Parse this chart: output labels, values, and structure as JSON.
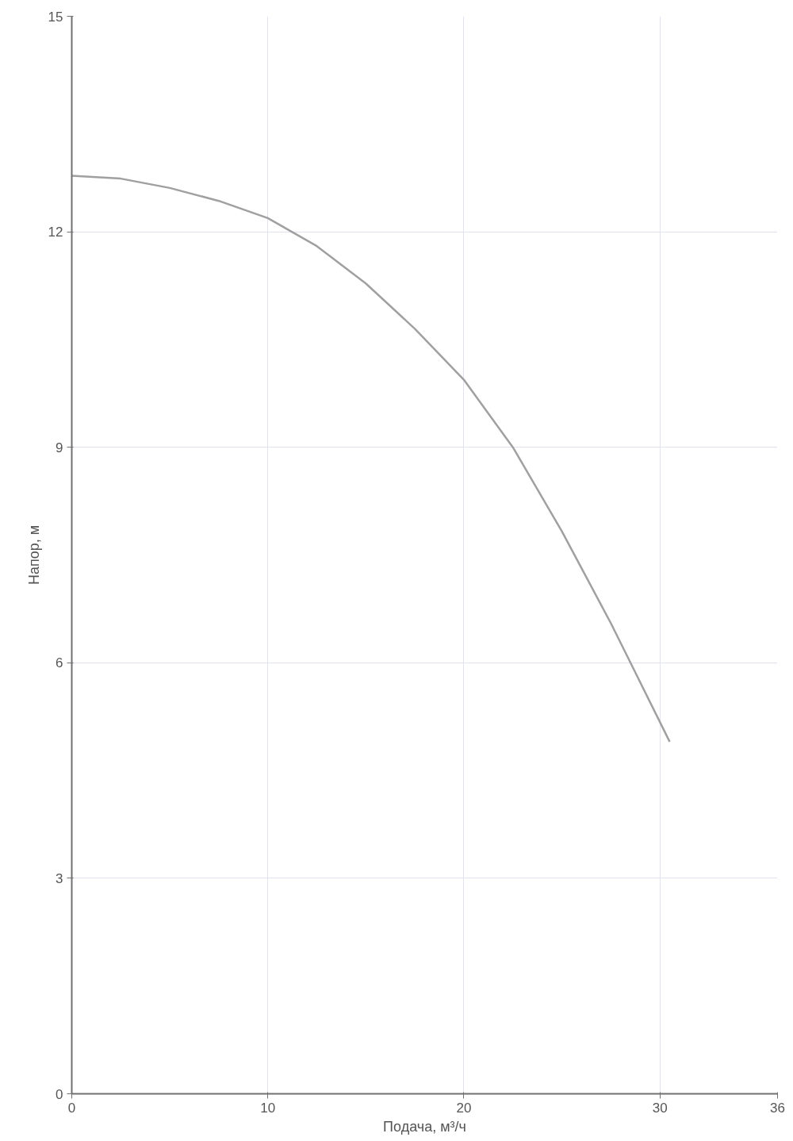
{
  "chart_data": {
    "type": "line",
    "xlabel": "Подача, м³/ч",
    "ylabel": "Напор, м",
    "xlim": [
      0,
      36
    ],
    "xticks": [
      0,
      10,
      20,
      30,
      36
    ],
    "ylim": [
      0,
      15
    ],
    "yticks": [
      0,
      3,
      6,
      9,
      12,
      15
    ],
    "grid": true,
    "marker": "none",
    "line_style": "solid",
    "series": [
      {
        "color": "#a0a0a0",
        "x": [
          0,
          2.5,
          5,
          7.5,
          10,
          12.5,
          15,
          17.5,
          20,
          22.5,
          25,
          27.5,
          28.5,
          30.5
        ],
        "values": [
          12.78,
          12.74,
          12.61,
          12.43,
          12.19,
          11.8,
          11.28,
          10.65,
          9.94,
          9.0,
          7.83,
          6.55,
          6.0,
          4.9
        ]
      }
    ]
  }
}
